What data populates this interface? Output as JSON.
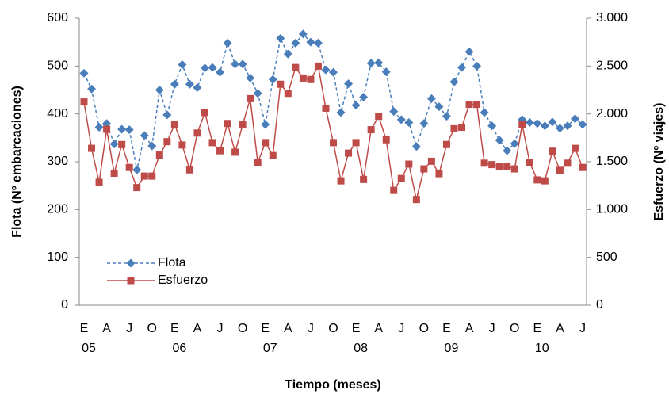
{
  "chart_data": {
    "type": "line",
    "x_label": "Tiempo (meses)",
    "y_label": "Flota (Nº embarcaciones)",
    "y2_label": "Esfuerzo (Nº viajes)",
    "categories": [
      "E",
      null,
      null,
      "A",
      null,
      null,
      "J",
      null,
      null,
      "O",
      null,
      null,
      "E",
      null,
      null,
      "A",
      null,
      null,
      "J",
      null,
      null,
      "O",
      null,
      null,
      "E",
      null,
      null,
      "A",
      null,
      null,
      "J",
      null,
      null,
      "O",
      null,
      null,
      "E",
      null,
      null,
      "A",
      null,
      null,
      "J",
      null,
      null,
      "O",
      null,
      null,
      "E",
      null,
      null,
      "A",
      null,
      null,
      "J",
      null,
      null,
      "O",
      null,
      null,
      "E",
      null,
      null,
      "A",
      null,
      null,
      "J"
    ],
    "years": [
      "05",
      "06",
      "07",
      "08",
      "09",
      "10"
    ],
    "ylim": [
      0,
      600
    ],
    "yticks": [
      0,
      100,
      200,
      300,
      400,
      500,
      600
    ],
    "y2lim": [
      0,
      3000
    ],
    "y2ticks": [
      0,
      500,
      {
        "value": 1000,
        "label": "1.000"
      },
      {
        "value": 1500,
        "label": "1.500"
      },
      {
        "value": 2000,
        "label": "2.000"
      },
      {
        "value": 2500,
        "label": "2.500"
      },
      {
        "value": 3000,
        "label": "3.000"
      }
    ],
    "legend": "lower-left",
    "series": [
      {
        "name": "Flota",
        "color": "#4a7ebb",
        "marker": "diamond",
        "dashed": true,
        "values": [
          485,
          452,
          372,
          380,
          337,
          368,
          367,
          283,
          355,
          333,
          450,
          398,
          462,
          503,
          462,
          455,
          496,
          497,
          487,
          548,
          504,
          504,
          475,
          443,
          378,
          472,
          558,
          525,
          548,
          567,
          550,
          548,
          492,
          487,
          403,
          463,
          418,
          435,
          506,
          507,
          488,
          405,
          388,
          382,
          332,
          380,
          432,
          415,
          395,
          467,
          497,
          530,
          500,
          403,
          375,
          345,
          323,
          338,
          388,
          382,
          380,
          375,
          383,
          370,
          375,
          390,
          378
        ]
      },
      {
        "name": "Esfuerzo",
        "color": "#be4b48",
        "marker": "square",
        "axis": "y2",
        "values": [
          2125,
          1640,
          1285,
          1840,
          1380,
          1680,
          1440,
          1230,
          1350,
          1350,
          1570,
          1710,
          1890,
          1675,
          1415,
          1800,
          2015,
          1700,
          1615,
          1900,
          1600,
          1885,
          2160,
          1490,
          1700,
          1565,
          2310,
          2215,
          2485,
          2375,
          2360,
          2500,
          2060,
          1700,
          1300,
          1590,
          1700,
          1315,
          1835,
          1975,
          1730,
          1200,
          1325,
          1475,
          1105,
          1425,
          1505,
          1375,
          1680,
          1845,
          1860,
          2100,
          2100,
          1485,
          1470,
          1450,
          1450,
          1425,
          1890,
          1490,
          1310,
          1300,
          1610,
          1410,
          1485,
          1640,
          1440
        ]
      }
    ]
  }
}
